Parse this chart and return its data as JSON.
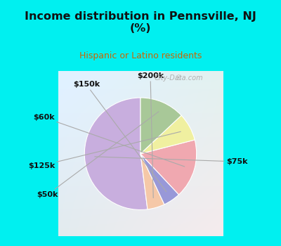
{
  "title": "Income distribution in Pennsville, NJ\n(%)",
  "subtitle": "Hispanic or Latino residents",
  "title_color": "#111111",
  "subtitle_color": "#cc6600",
  "bg_cyan": "#00f0f0",
  "bg_chart_tl": "#e0f5e8",
  "bg_chart_br": "#d8eef5",
  "labels": [
    "$75k",
    "$200k",
    "$150k",
    "$60k",
    "$125k",
    "$50k"
  ],
  "values": [
    52,
    5,
    5,
    17,
    8,
    13
  ],
  "colors": [
    "#c8aede",
    "#f5c8a8",
    "#9898d8",
    "#f0a8b0",
    "#f0f0a0",
    "#a8c898"
  ],
  "startangle": 90,
  "watermark": "City-Data.com"
}
